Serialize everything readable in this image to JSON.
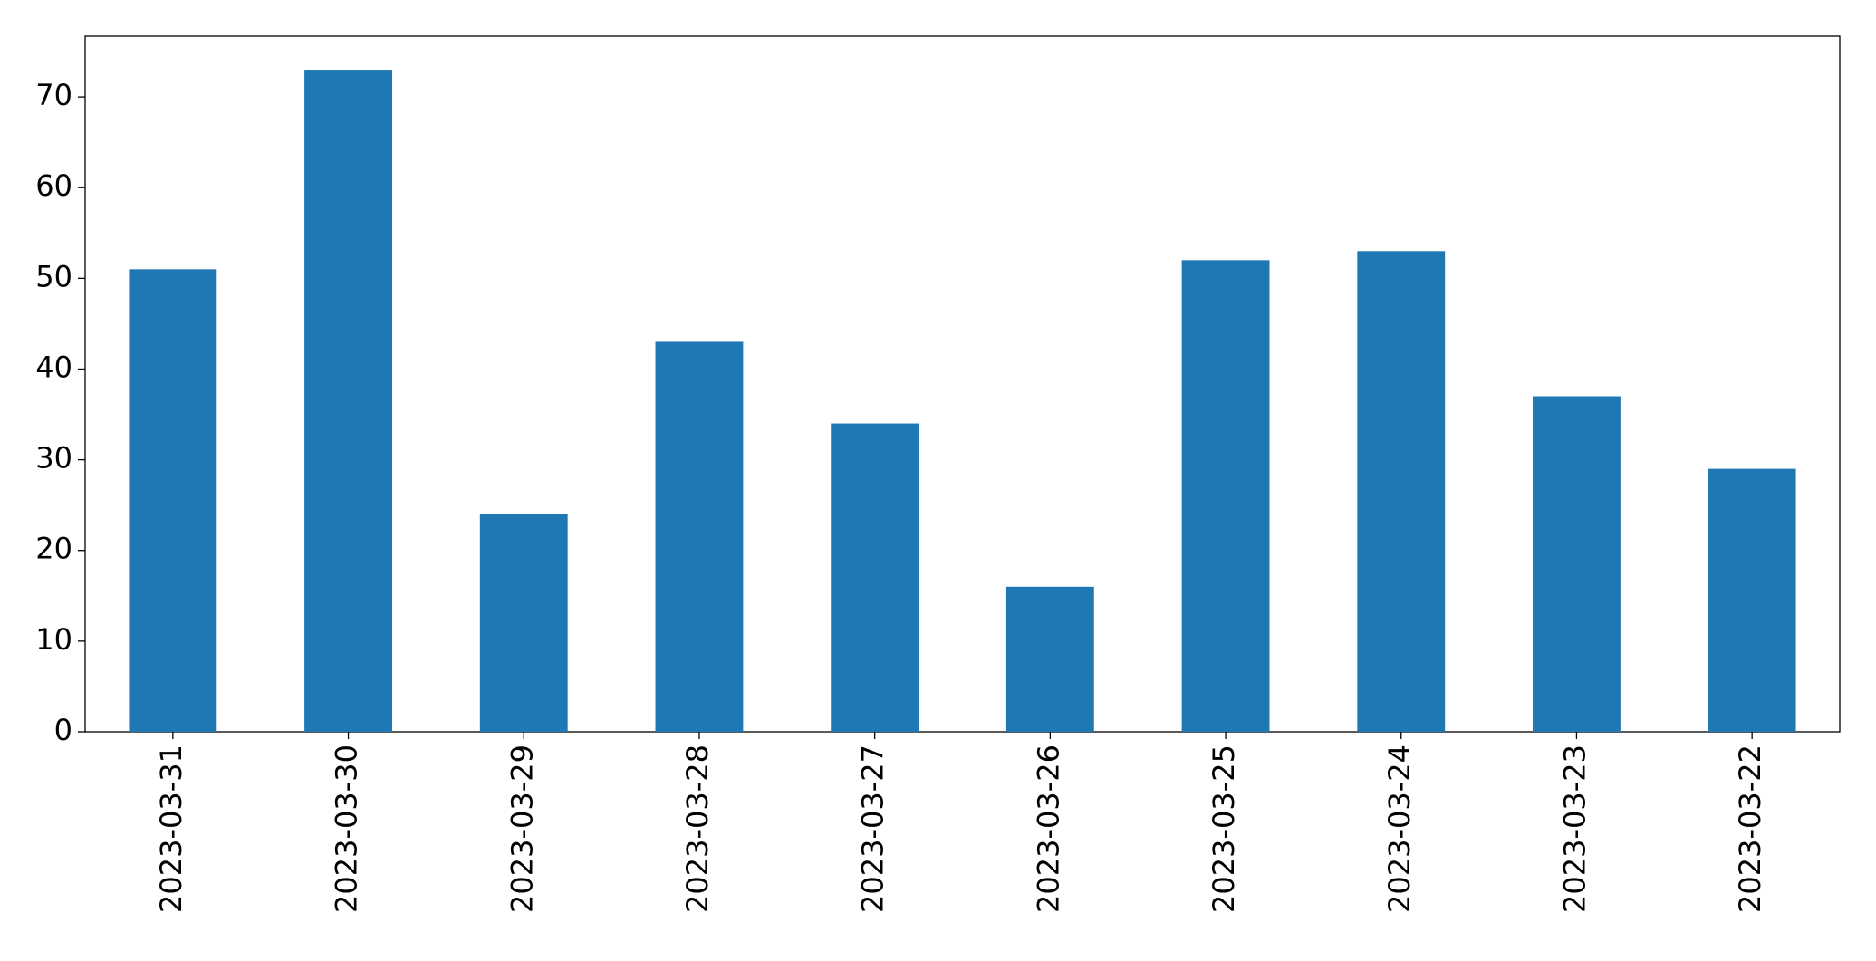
{
  "chart_data": {
    "type": "bar",
    "categories": [
      "2023-03-31",
      "2023-03-30",
      "2023-03-29",
      "2023-03-28",
      "2023-03-27",
      "2023-03-26",
      "2023-03-25",
      "2023-03-24",
      "2023-03-23",
      "2023-03-22"
    ],
    "values": [
      51,
      73,
      24,
      43,
      34,
      16,
      52,
      53,
      37,
      29
    ],
    "color": "#1f77b4",
    "ylim": [
      0,
      76.7
    ],
    "yticks": [
      0,
      10,
      20,
      30,
      40,
      50,
      60,
      70
    ],
    "grid": false
  }
}
